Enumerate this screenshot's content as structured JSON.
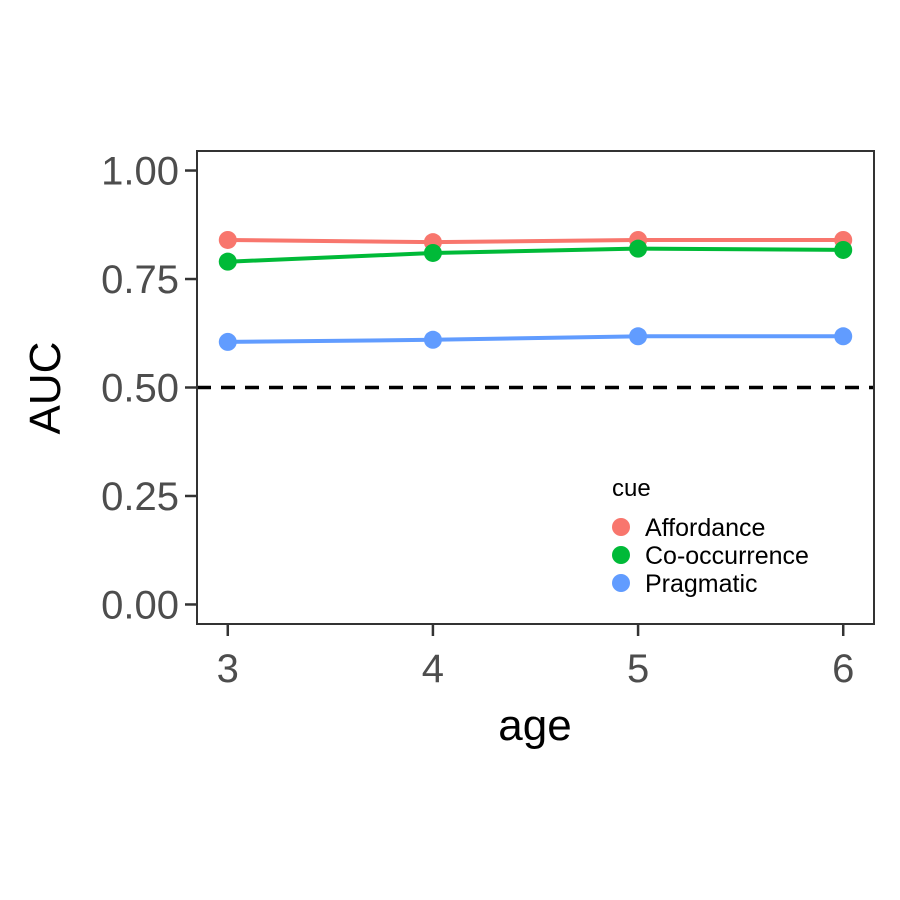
{
  "chart_data": {
    "type": "line",
    "xlabel": "age",
    "ylabel": "AUC",
    "x": [
      3,
      4,
      5,
      6
    ],
    "xlim": [
      2.85,
      6.15
    ],
    "ylim": [
      -0.045,
      1.045
    ],
    "x_ticks": [
      {
        "value": 3,
        "label": "3"
      },
      {
        "value": 4,
        "label": "4"
      },
      {
        "value": 5,
        "label": "5"
      },
      {
        "value": 6,
        "label": "6"
      }
    ],
    "y_ticks": [
      {
        "value": 0,
        "label": "0.00"
      },
      {
        "value": 0.25,
        "label": "0.25"
      },
      {
        "value": 0.5,
        "label": "0.50"
      },
      {
        "value": 0.75,
        "label": "0.75"
      },
      {
        "value": 1,
        "label": "1.00"
      }
    ],
    "reference_line": {
      "y": 0.5,
      "style": "dashed",
      "color": "#000000"
    },
    "grid": false,
    "legend": {
      "title": "cue",
      "placement": "inside-bottom-right"
    },
    "series": [
      {
        "name": "Affordance",
        "color": "#F8766D",
        "values": [
          0.84,
          0.835,
          0.84,
          0.84
        ]
      },
      {
        "name": "Co-occurrence",
        "color": "#00BA38",
        "values": [
          0.79,
          0.81,
          0.82,
          0.817
        ]
      },
      {
        "name": "Pragmatic",
        "color": "#619CFF",
        "values": [
          0.605,
          0.61,
          0.618,
          0.618
        ]
      }
    ]
  }
}
